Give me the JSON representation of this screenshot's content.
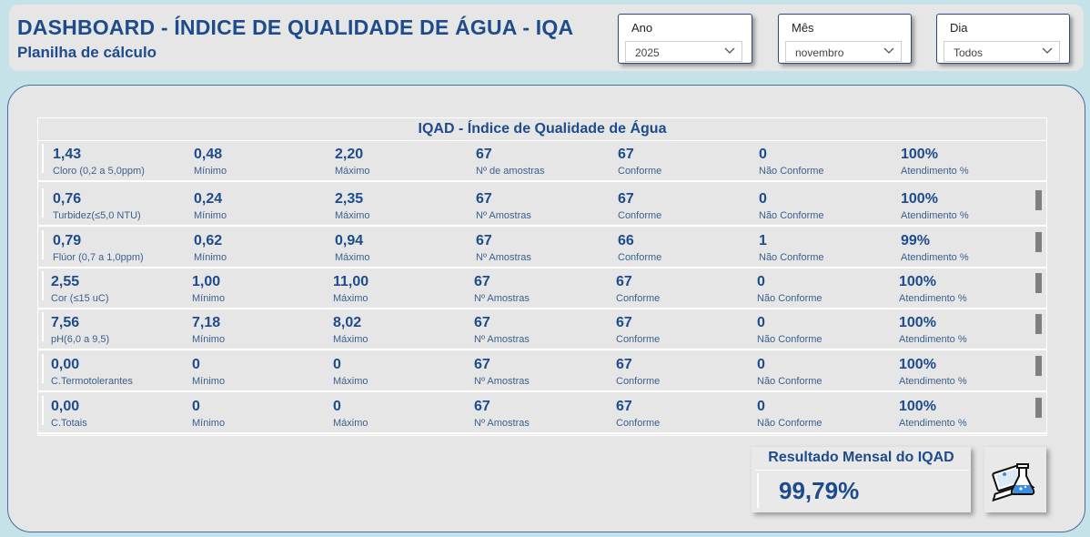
{
  "header": {
    "title": "DASHBOARD - ÍNDICE DE QUALIDADE DE ÁGUA - IQA",
    "subtitle": "Planilha de cálculo"
  },
  "filters": {
    "ano": {
      "label": "Ano",
      "value": "2025"
    },
    "mes": {
      "label": "Mês",
      "value": "novembro"
    },
    "dia": {
      "label": "Dia",
      "value": "Todos"
    }
  },
  "table": {
    "title": "IQAD - Índice de Qualidade de Água",
    "rows": [
      {
        "value": "1,43",
        "name": "Cloro (0,2 a 5,0ppm)",
        "min": "0,48",
        "min_label": "Mínimo",
        "max": "2,20",
        "max_label": "Máximo",
        "samples": "67",
        "samples_label": "Nº de amostras",
        "conforme": "67",
        "conforme_label": "Conforme",
        "nao_conforme": "0",
        "nao_conforme_label": "Não Conforme",
        "atendimento": "100%",
        "atendimento_label": "Atendimento %"
      },
      {
        "value": "0,76",
        "name": "Turbidez(≤5,0 NTU)",
        "min": "0,24",
        "min_label": "Mínimo",
        "max": "2,35",
        "max_label": "Máximo",
        "samples": "67",
        "samples_label": "Nº Amostras",
        "conforme": "67",
        "conforme_label": "Conforme",
        "nao_conforme": "0",
        "nao_conforme_label": "Não Conforme",
        "atendimento": "100%",
        "atendimento_label": "Atendimento %"
      },
      {
        "value": "0,79",
        "name": "Flúor (0,7 a 1,0ppm)",
        "min": "0,62",
        "min_label": "Mínimo",
        "max": "0,94",
        "max_label": "Máximo",
        "samples": "67",
        "samples_label": "Nº Amostras",
        "conforme": "66",
        "conforme_label": "Conforme",
        "nao_conforme": "1",
        "nao_conforme_label": "Não Conforme",
        "atendimento": "99%",
        "atendimento_label": "Atendimento %"
      },
      {
        "value": "2,55",
        "name": "Cor (≤15 uC)",
        "min": "1,00",
        "min_label": "Mínimo",
        "max": "11,00",
        "max_label": "Máximo",
        "samples": "67",
        "samples_label": "Nº Amostras",
        "conforme": "67",
        "conforme_label": "Conforme",
        "nao_conforme": "0",
        "nao_conforme_label": "Não Conforme",
        "atendimento": "100%",
        "atendimento_label": "Atendimento %"
      },
      {
        "value": "7,56",
        "name": "pH(6,0 a 9,5)",
        "min": "7,18",
        "min_label": "Mínimo",
        "max": "8,02",
        "max_label": "Máximo",
        "samples": "67",
        "samples_label": "Nº Amostras",
        "conforme": "67",
        "conforme_label": "Conforme",
        "nao_conforme": "0",
        "nao_conforme_label": "Não Conforme",
        "atendimento": "100%",
        "atendimento_label": "Atendimento %"
      },
      {
        "value": "0,00",
        "name": "C.Termotolerantes",
        "min": "0",
        "min_label": "Mínimo",
        "max": "0",
        "max_label": "Máximo",
        "samples": "67",
        "samples_label": "Nº Amostras",
        "conforme": "67",
        "conforme_label": "Conforme",
        "nao_conforme": "0",
        "nao_conforme_label": "Não Conforme",
        "atendimento": "100%",
        "atendimento_label": "Atendimento %"
      },
      {
        "value": "0,00",
        "name": "C.Totais",
        "min": "0",
        "min_label": "Mínimo",
        "max": "0",
        "max_label": "Máximo",
        "samples": "67",
        "samples_label": "Nº Amostras",
        "conforme": "67",
        "conforme_label": "Conforme",
        "nao_conforme": "0",
        "nao_conforme_label": "Não Conforme",
        "atendimento": "100%",
        "atendimento_label": "Atendimento %"
      }
    ]
  },
  "result": {
    "title": "Resultado Mensal do IQAD",
    "value": "99,79%"
  },
  "icons": {
    "chevron": "chevron-down-icon",
    "lab": "laptop-flask-icon"
  },
  "colors": {
    "accent": "#1d4b8c",
    "background": "#c4e2e8",
    "panel": "#e6e6e6"
  }
}
